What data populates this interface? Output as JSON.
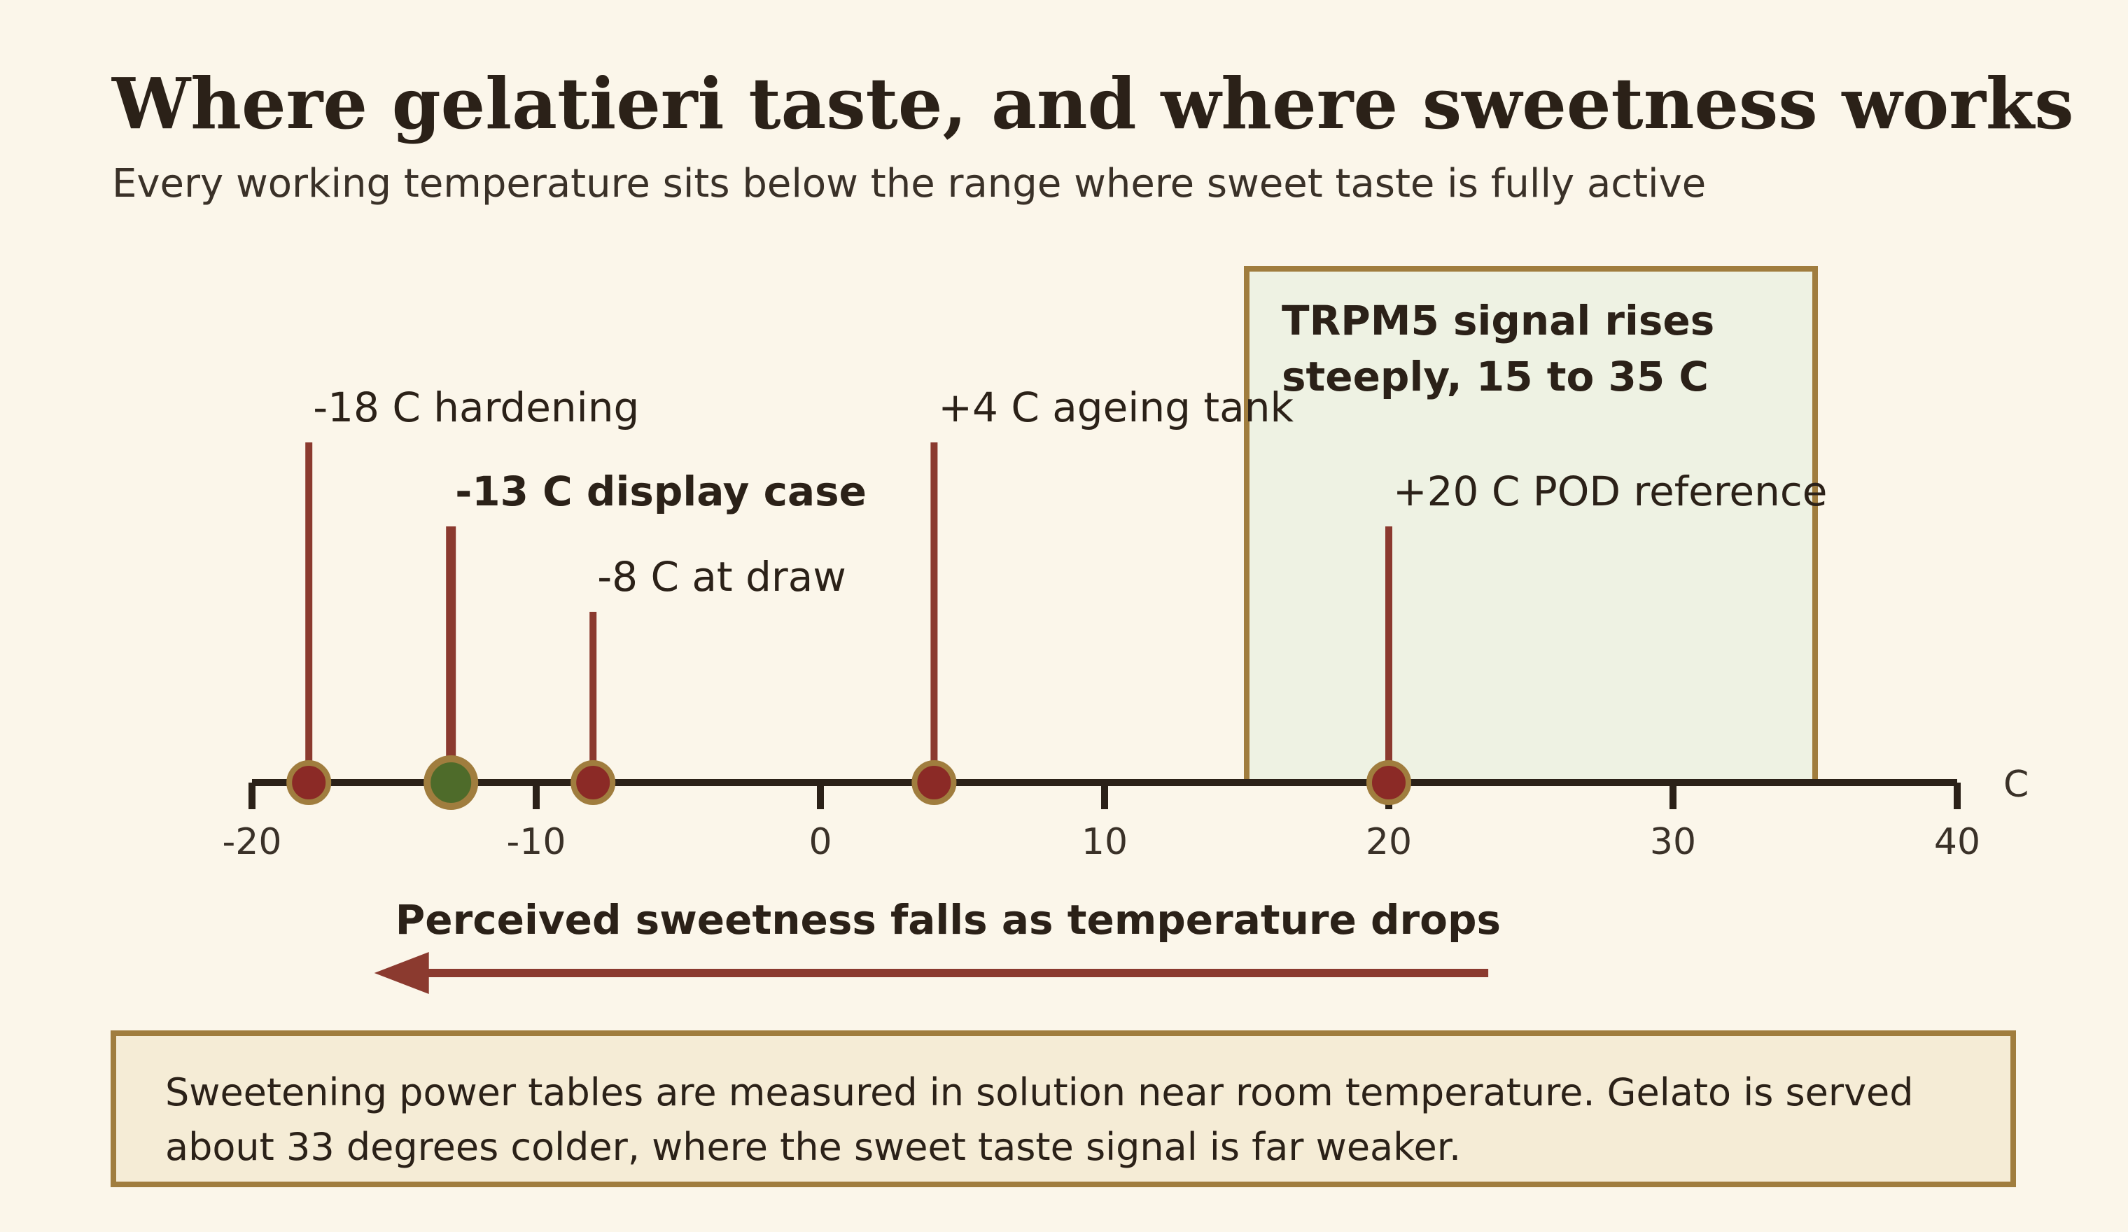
{
  "title": "Where gelatieri taste, and where sweetness works",
  "subtitle": "Every working temperature sits below the range where sweet taste is fully active",
  "colors": {
    "background": "#fbf6ea",
    "axis": "#2b2118",
    "marker_line": "#8b3a2f",
    "marker_dot": "#8b2a26",
    "marker_ring": "#a07d3e",
    "highlight_dot": "#4e6b2a",
    "band_fill": "#eef2e3",
    "band_border": "#a07d3e",
    "note_fill": "#f5ecd6"
  },
  "chart_data": {
    "type": "scatter",
    "x_unit": "C",
    "xlim": [
      -20,
      40
    ],
    "x_ticks": [
      -20,
      -10,
      0,
      10,
      20,
      30,
      40
    ],
    "tick_labels": [
      "-20",
      "-10",
      "0",
      "10",
      "20",
      "30",
      "40"
    ],
    "markers": [
      {
        "x": -18,
        "label": "-18 C hardening",
        "emphasis": false
      },
      {
        "x": -13,
        "label": "-13 C display case",
        "emphasis": true
      },
      {
        "x": -8,
        "label": "-8 C at draw",
        "emphasis": false
      },
      {
        "x": 4,
        "label": "+4 C ageing tank",
        "emphasis": false
      },
      {
        "x": 20,
        "label": "+20 C POD reference",
        "emphasis": false
      }
    ],
    "band": {
      "x_start": 15,
      "x_end": 35,
      "label_lines": [
        "TRPM5 signal rises",
        "steeply, 15 to 35 C"
      ]
    },
    "arrow": {
      "from_x": 23.5,
      "to_x": -15.5,
      "label": "Perceived sweetness falls as temperature drops"
    }
  },
  "note": {
    "text": "Sweetening power tables are measured in solution near room temperature. Gelato is served about 33 degrees colder, where the sweet taste signal is far weaker."
  }
}
